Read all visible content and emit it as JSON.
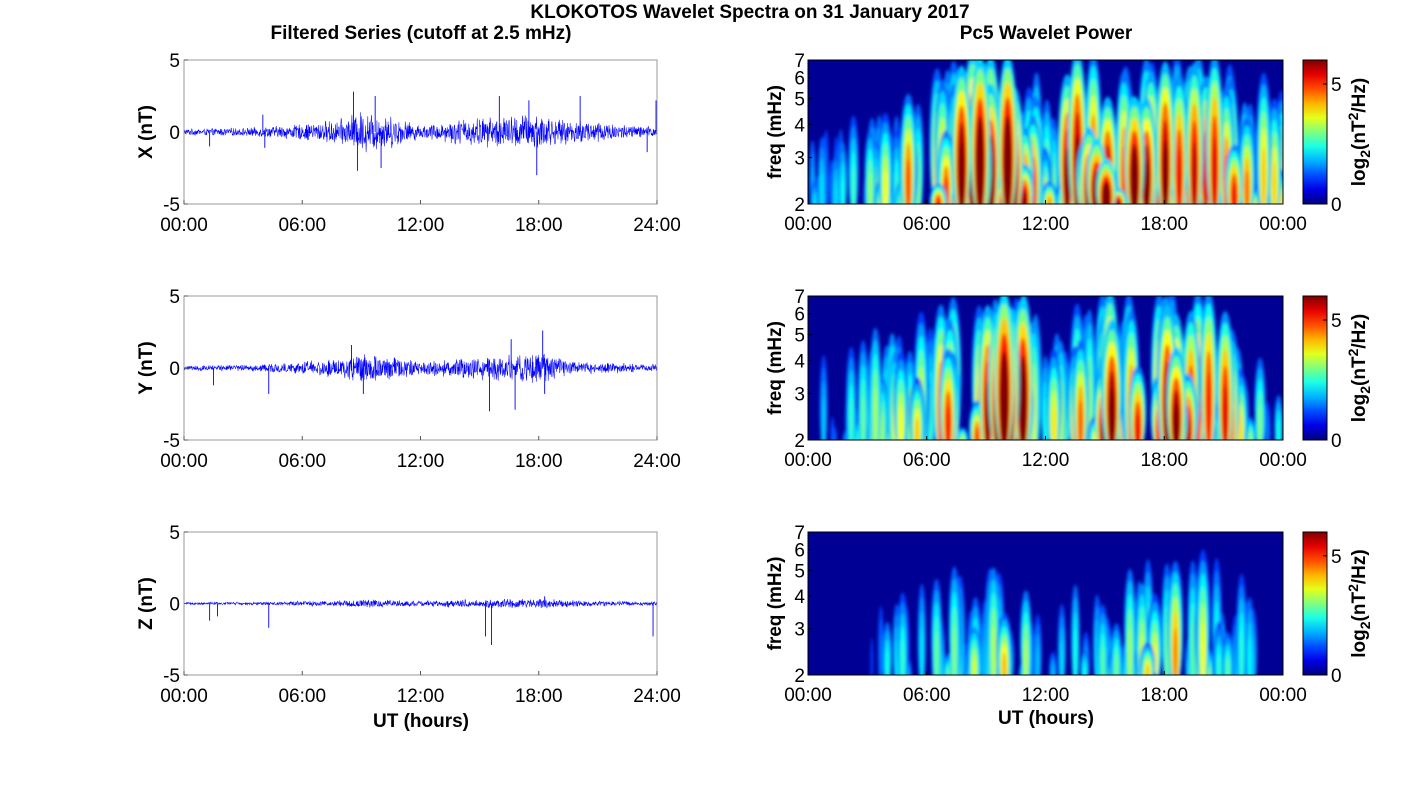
{
  "figure": {
    "title": "KLOKOTOS Wavelet Spectra on 31 January 2017",
    "left_column_title": "Filtered Series (cutoff at 2.5 mHz)",
    "right_column_title": "Pc5 Wavelet Power",
    "xlabel": "UT (hours)"
  },
  "colors": {
    "series_line": "#0000ff",
    "background": "#ffffff",
    "jet_low": "#00008f",
    "jet_high": "#800000"
  },
  "chart_data": [
    {
      "type": "line",
      "panel": "X",
      "ylabel": "X (nT)",
      "x_ticks": [
        "00:00",
        "06:00",
        "12:00",
        "18:00",
        "24:00"
      ],
      "y_ticks": [
        "5",
        "0",
        "-5"
      ],
      "xlim": [
        0,
        24
      ],
      "ylim": [
        -5,
        5
      ],
      "envelope": {
        "x_hours": [
          0,
          1,
          2,
          3,
          4,
          5,
          6,
          7,
          8,
          9,
          10,
          11,
          12,
          13,
          14,
          15,
          16,
          17,
          18,
          19,
          20,
          21,
          22,
          23,
          24
        ],
        "amplitude": [
          0.25,
          0.25,
          0.3,
          0.3,
          0.4,
          0.5,
          0.6,
          0.8,
          1.0,
          1.6,
          1.4,
          1.0,
          0.5,
          0.7,
          1.0,
          1.1,
          1.2,
          1.3,
          1.5,
          0.9,
          0.9,
          0.9,
          0.6,
          0.5,
          0.4
        ]
      },
      "spikes": [
        {
          "x": 1.3,
          "y": -1.0
        },
        {
          "x": 4.0,
          "y": 1.2
        },
        {
          "x": 4.1,
          "y": -1.1
        },
        {
          "x": 8.6,
          "y": 2.8
        },
        {
          "x": 8.8,
          "y": -2.7
        },
        {
          "x": 9.7,
          "y": 2.5
        },
        {
          "x": 10.0,
          "y": -2.5
        },
        {
          "x": 16.0,
          "y": 2.5
        },
        {
          "x": 17.5,
          "y": 2.2
        },
        {
          "x": 17.9,
          "y": -3.0
        },
        {
          "x": 20.1,
          "y": 2.5
        },
        {
          "x": 23.5,
          "y": -1.4
        },
        {
          "x": 23.95,
          "y": 2.2
        }
      ]
    },
    {
      "type": "line",
      "panel": "Y",
      "ylabel": "Y (nT)",
      "x_ticks": [
        "00:00",
        "06:00",
        "12:00",
        "18:00",
        "24:00"
      ],
      "y_ticks": [
        "5",
        "0",
        "-5"
      ],
      "xlim": [
        0,
        24
      ],
      "ylim": [
        -5,
        5
      ],
      "envelope": {
        "x_hours": [
          0,
          1,
          2,
          3,
          4,
          5,
          6,
          7,
          8,
          9,
          10,
          11,
          12,
          13,
          14,
          15,
          16,
          17,
          18,
          19,
          20,
          21,
          22,
          23,
          24
        ],
        "amplitude": [
          0.2,
          0.2,
          0.25,
          0.25,
          0.3,
          0.35,
          0.5,
          0.6,
          0.8,
          1.2,
          1.0,
          0.8,
          0.5,
          0.6,
          0.8,
          0.9,
          1.0,
          1.1,
          1.3,
          0.7,
          0.5,
          0.4,
          0.4,
          0.3,
          0.3
        ]
      },
      "spikes": [
        {
          "x": 1.5,
          "y": -1.2
        },
        {
          "x": 4.3,
          "y": -1.8
        },
        {
          "x": 8.5,
          "y": 1.6
        },
        {
          "x": 9.1,
          "y": -1.8
        },
        {
          "x": 15.5,
          "y": -3.0
        },
        {
          "x": 16.6,
          "y": 2.0
        },
        {
          "x": 16.8,
          "y": -2.9
        },
        {
          "x": 18.2,
          "y": 2.6
        },
        {
          "x": 18.3,
          "y": -1.8
        }
      ]
    },
    {
      "type": "line",
      "panel": "Z",
      "ylabel": "Z (nT)",
      "x_ticks": [
        "00:00",
        "06:00",
        "12:00",
        "18:00",
        "24:00"
      ],
      "y_ticks": [
        "5",
        "0",
        "-5"
      ],
      "xlim": [
        0,
        24
      ],
      "ylim": [
        -5,
        5
      ],
      "envelope": {
        "x_hours": [
          0,
          1,
          2,
          3,
          4,
          5,
          6,
          7,
          8,
          9,
          10,
          11,
          12,
          13,
          14,
          15,
          16,
          17,
          18,
          19,
          20,
          21,
          22,
          23,
          24
        ],
        "amplitude": [
          0.1,
          0.1,
          0.1,
          0.1,
          0.12,
          0.15,
          0.2,
          0.2,
          0.25,
          0.3,
          0.3,
          0.25,
          0.2,
          0.25,
          0.3,
          0.3,
          0.35,
          0.35,
          0.4,
          0.3,
          0.25,
          0.2,
          0.2,
          0.15,
          0.15
        ]
      },
      "spikes": [
        {
          "x": 1.3,
          "y": -1.2
        },
        {
          "x": 1.7,
          "y": -0.9
        },
        {
          "x": 4.3,
          "y": -1.7
        },
        {
          "x": 15.3,
          "y": -2.3
        },
        {
          "x": 15.6,
          "y": -2.9
        },
        {
          "x": 18.3,
          "y": 0.5
        },
        {
          "x": 23.8,
          "y": -2.3
        }
      ]
    },
    {
      "type": "heatmap",
      "panel": "X",
      "ylabel": "freq (mHz)",
      "x_ticks": [
        "00:00",
        "06:00",
        "12:00",
        "18:00",
        "00:00"
      ],
      "y_ticks": [
        "7",
        "6",
        "5",
        "4",
        "3",
        "2"
      ],
      "y_scale": "log",
      "ylim": [
        2,
        7
      ],
      "xlim": [
        0,
        24
      ],
      "colorbar": {
        "label": "log2(nT2/Hz)",
        "ticks": [
          "5",
          "0"
        ],
        "range": [
          0,
          6
        ],
        "colormap": "jet"
      },
      "activity": {
        "x_hours": [
          0,
          1,
          2,
          3,
          4,
          5,
          6,
          7,
          8,
          9,
          10,
          11,
          12,
          13,
          14,
          15,
          16,
          17,
          18,
          19,
          20,
          21,
          22,
          23,
          24
        ],
        "level": [
          0.35,
          0.3,
          0.45,
          0.5,
          0.55,
          0.75,
          0.8,
          0.85,
          0.95,
          1.0,
          1.0,
          0.95,
          0.6,
          0.9,
          0.95,
          1.0,
          1.0,
          0.95,
          1.0,
          1.0,
          0.95,
          0.9,
          0.8,
          0.75,
          0.6
        ]
      }
    },
    {
      "type": "heatmap",
      "panel": "Y",
      "ylabel": "freq (mHz)",
      "x_ticks": [
        "00:00",
        "06:00",
        "12:00",
        "18:00",
        "00:00"
      ],
      "y_ticks": [
        "7",
        "6",
        "5",
        "4",
        "3",
        "2"
      ],
      "y_scale": "log",
      "ylim": [
        2,
        7
      ],
      "xlim": [
        0,
        24
      ],
      "colorbar": {
        "label": "log2(nT2/Hz)",
        "ticks": [
          "5",
          "0"
        ],
        "range": [
          0,
          6
        ],
        "colormap": "jet"
      },
      "activity": {
        "x_hours": [
          0,
          1,
          2,
          3,
          4,
          5,
          6,
          7,
          8,
          9,
          10,
          11,
          12,
          13,
          14,
          15,
          16,
          17,
          18,
          19,
          20,
          21,
          22,
          23,
          24
        ],
        "level": [
          0.25,
          0.35,
          0.45,
          0.45,
          0.5,
          0.6,
          0.7,
          0.75,
          0.95,
          1.0,
          1.0,
          0.95,
          0.45,
          0.8,
          0.85,
          0.9,
          0.95,
          0.9,
          1.0,
          0.9,
          0.85,
          0.8,
          0.7,
          0.45,
          0.35
        ]
      }
    },
    {
      "type": "heatmap",
      "panel": "Z",
      "ylabel": "freq (mHz)",
      "x_ticks": [
        "00:00",
        "06:00",
        "12:00",
        "18:00",
        "00:00"
      ],
      "y_ticks": [
        "7",
        "6",
        "5",
        "4",
        "3",
        "2"
      ],
      "y_scale": "log",
      "ylim": [
        2,
        7
      ],
      "xlim": [
        0,
        24
      ],
      "colorbar": {
        "label": "log2(nT2/Hz)",
        "ticks": [
          "5",
          "0"
        ],
        "range": [
          0,
          6
        ],
        "colormap": "jet"
      },
      "activity": {
        "x_hours": [
          0,
          1,
          2,
          3,
          4,
          5,
          6,
          7,
          8,
          9,
          10,
          11,
          12,
          13,
          14,
          15,
          16,
          17,
          18,
          19,
          20,
          21,
          22,
          23,
          24
        ],
        "level": [
          0.05,
          0.1,
          0.15,
          0.2,
          0.35,
          0.4,
          0.45,
          0.4,
          0.5,
          0.55,
          0.65,
          0.5,
          0.2,
          0.45,
          0.55,
          0.5,
          0.5,
          0.6,
          0.7,
          0.6,
          0.65,
          0.5,
          0.4,
          0.2,
          0.15
        ]
      }
    }
  ]
}
